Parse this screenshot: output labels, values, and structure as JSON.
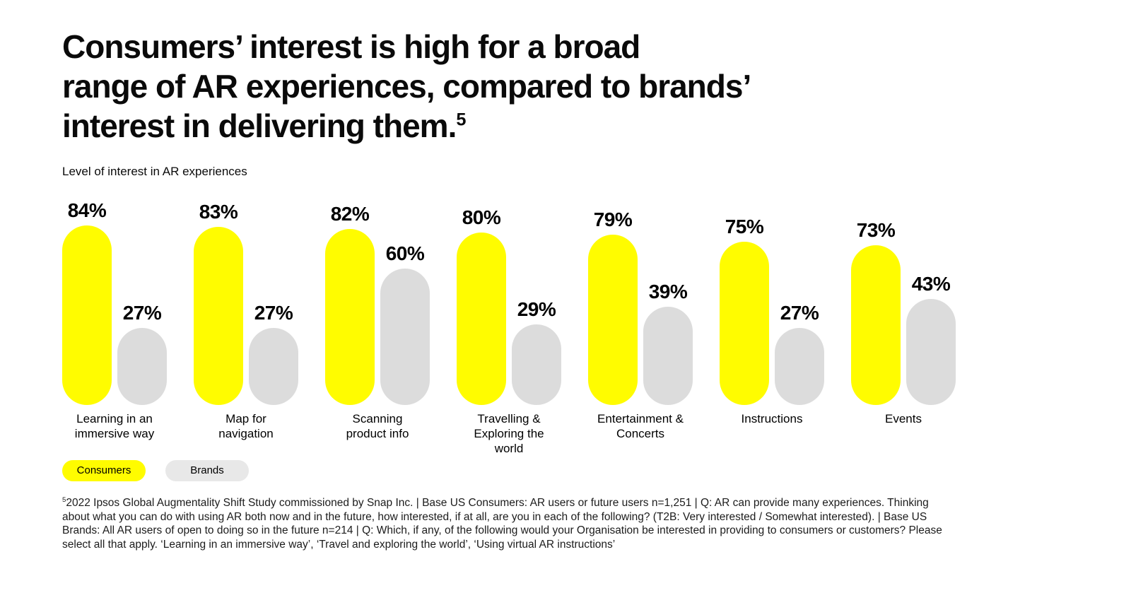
{
  "header": {
    "title_line1": "Consumers’ interest is high for a broad",
    "title_line2": "range of AR experiences, compared to brands’",
    "title_line3": "interest in delivering them.",
    "title_superscript": "5"
  },
  "chart_data": {
    "type": "bar",
    "title": "Level of interest in AR experiences",
    "categories": [
      "Learning in an immersive way",
      "Map for navigation",
      "Scanning product info",
      "Travelling & Exploring the world",
      "Entertainment & Concerts",
      "Instructions",
      "Events"
    ],
    "series": [
      {
        "name": "Consumers",
        "color": "#FFFC00",
        "values": [
          84,
          83,
          82,
          80,
          79,
          75,
          73
        ]
      },
      {
        "name": "Brands",
        "color": "#DCDCDC",
        "values": [
          27,
          27,
          60,
          29,
          39,
          27,
          43
        ]
      }
    ],
    "unit": "%",
    "value_labels": true,
    "ylim": [
      0,
      100
    ],
    "grid": false,
    "legend": {
      "position": "bottom-left",
      "items": [
        {
          "label": "Consumers",
          "color": "#FFFC00"
        },
        {
          "label": "Brands",
          "color": "#E8E8E8"
        }
      ]
    }
  },
  "footnote": {
    "superscript": "5",
    "text": "2022 Ipsos Global Augmentality Shift Study commissioned by Snap Inc. | Base US Consumers: AR users or future users n=1,251 | Q: AR can provide many experiences. Thinking about what you can do with using AR both now and in the future, how interested, if at all, are you in each of the following? (T2B: Very interested / Somewhat interested). | Base US Brands: All AR users of open to doing so in the future n=214 | Q: Which, if any, of the following would your Organisation be interested in providing to consumers or customers? Please select all that apply. ‘Learning in an immersive way’, ‘Travel and exploring the world’, ‘Using virtual AR instructions’"
  }
}
